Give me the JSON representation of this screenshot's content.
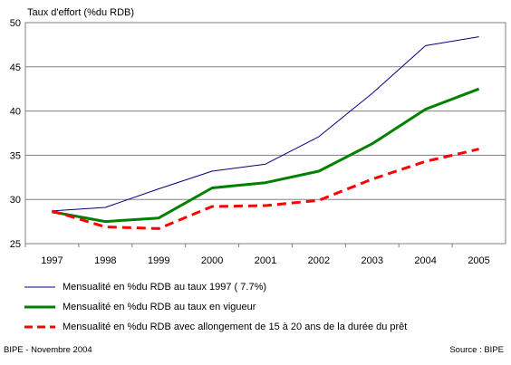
{
  "chart_data": {
    "type": "line",
    "ylabel": "Taux d'effort (%du RDB)",
    "categories": [
      "1997",
      "1998",
      "1999",
      "2000",
      "2001",
      "2002",
      "2003",
      "2004",
      "2005"
    ],
    "yticks": [
      "25",
      "30",
      "35",
      "40",
      "45",
      "50"
    ],
    "ylim": [
      25,
      50
    ],
    "grid": true,
    "legend_position": "bottom",
    "series": [
      {
        "name": "Mensualité en %du RDB au taux 1997 ( 7.7%)",
        "values": [
          28.7,
          29.1,
          31.2,
          33.2,
          34.0,
          37.1,
          42.0,
          47.4,
          48.4
        ],
        "color": "#000080",
        "style": "thin-solid"
      },
      {
        "name": "Mensualité en %du RDB au taux en vigueur",
        "values": [
          28.6,
          27.5,
          27.9,
          31.3,
          31.9,
          33.2,
          36.3,
          40.2,
          42.5
        ],
        "color": "#008000",
        "style": "thick-solid"
      },
      {
        "name": "Mensualité en %du RDB avec allongement de 15 à 20 ans de la durée du prêt",
        "values": [
          28.7,
          26.9,
          26.7,
          29.2,
          29.3,
          29.9,
          32.3,
          34.3,
          35.7
        ],
        "color": "#ff0000",
        "style": "thick-dashed"
      }
    ]
  },
  "footer": {
    "left": "BIPE - Novembre 2004",
    "right": "Source : BIPE"
  }
}
